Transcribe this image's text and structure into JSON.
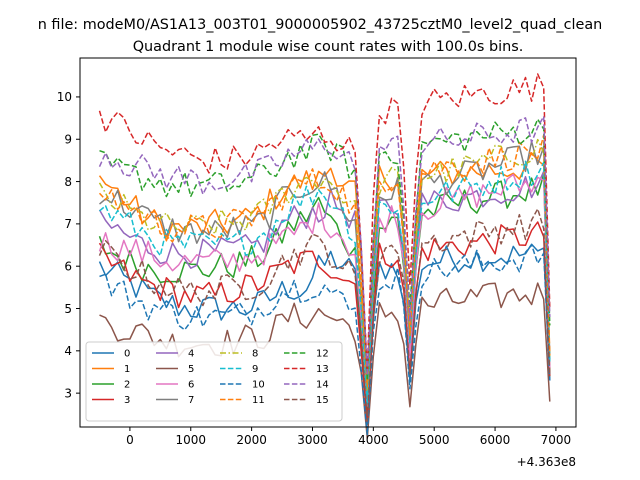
{
  "suptitle": "n file: modeM0/AS1A13_003T01_9000005902_43725cztM0_level2_quad_clean",
  "chart_data": {
    "type": "line",
    "title": "Quadrant 1 module wise count rates with 100.0s bins.",
    "xlabel": "",
    "ylabel": "",
    "x_offset_label": "+4.363e8",
    "xlim": [
      -820,
      7330
    ],
    "ylim": [
      2.2,
      10.92
    ],
    "xticks": [
      0,
      1000,
      2000,
      3000,
      4000,
      5000,
      6000,
      7000
    ],
    "xtick_labels": [
      "0",
      "1000",
      "2000",
      "3000",
      "4000",
      "5000",
      "6000",
      "7000"
    ],
    "yticks": [
      3,
      4,
      5,
      6,
      7,
      8,
      9,
      10
    ],
    "ytick_labels": [
      "3",
      "4",
      "5",
      "6",
      "7",
      "8",
      "9",
      "10"
    ],
    "grid": false,
    "legend_position": "lower-left",
    "legend_columns": 4,
    "x_start": -500,
    "x_step": 100,
    "num_points": 75,
    "dips": [
      {
        "center": 3900,
        "drop": 0.62
      },
      {
        "center": 4600,
        "drop": 0.45
      }
    ],
    "series": [
      {
        "name": "0",
        "color": "#1f77b4",
        "dash": "solid",
        "base": [
          6.0,
          5.8,
          5.6,
          5.4,
          5.2,
          5.1,
          5.0,
          5.0,
          5.0,
          5.0,
          5.0,
          5.1,
          5.3,
          5.5,
          5.4,
          5.9,
          6.2,
          6.0,
          5.5
        ],
        "rise": [
          5.9,
          6.2,
          6.3
        ],
        "last": 3.3
      },
      {
        "name": "1",
        "color": "#ff7f0e",
        "dash": "solid",
        "base": [
          8.1,
          7.8,
          7.5,
          7.2,
          7.0,
          6.9,
          6.9,
          6.9,
          7.0,
          7.0,
          7.1,
          7.3,
          7.6,
          7.9,
          8.0,
          8.0,
          8.4,
          7.9,
          7.7
        ],
        "rise": [
          8.1,
          8.2,
          8.4
        ],
        "last": 3.6
      },
      {
        "name": "2",
        "color": "#2ca02c",
        "dash": "solid",
        "base": [
          6.5,
          6.3,
          6.1,
          6.0,
          5.9,
          5.9,
          5.9,
          5.9,
          6.0,
          6.0,
          6.1,
          6.2,
          6.5,
          6.9,
          7.1,
          7.5,
          7.0,
          6.6,
          6.0
        ],
        "rise": [
          6.8,
          7.5,
          7.9
        ],
        "last": 3.4
      },
      {
        "name": "3",
        "color": "#d62728",
        "dash": "solid",
        "base": [
          6.2,
          6.0,
          5.8,
          5.6,
          5.5,
          5.4,
          5.3,
          5.3,
          5.3,
          5.4,
          5.5,
          5.6,
          5.8,
          6.0,
          6.1,
          6.2,
          6.0,
          5.7,
          5.5
        ],
        "rise": [
          6.2,
          6.5,
          6.8
        ],
        "last": 3.4
      },
      {
        "name": "4",
        "color": "#9467bd",
        "dash": "solid",
        "base": [
          7.0,
          6.9,
          6.7,
          6.5,
          6.4,
          6.3,
          6.3,
          6.3,
          6.3,
          6.4,
          6.4,
          6.5,
          6.8,
          7.1,
          7.2,
          7.3,
          7.5,
          7.3,
          6.8
        ],
        "rise": [
          7.3,
          7.6,
          8.0
        ],
        "last": 3.8
      },
      {
        "name": "5",
        "color": "#8c564b",
        "dash": "solid",
        "base": [
          4.7,
          4.6,
          4.5,
          4.4,
          4.3,
          4.2,
          4.2,
          4.2,
          4.2,
          4.2,
          4.3,
          4.3,
          4.5,
          4.8,
          4.8,
          4.9,
          4.8,
          4.6,
          4.5
        ],
        "rise": [
          4.8,
          5.2,
          5.4
        ],
        "last": 2.8
      },
      {
        "name": "6",
        "color": "#e377c2",
        "dash": "solid",
        "base": [
          6.6,
          6.5,
          6.4,
          6.3,
          6.2,
          6.1,
          6.1,
          6.1,
          6.1,
          6.1,
          6.2,
          6.3,
          6.5,
          6.7,
          6.9,
          7.2,
          7.0,
          6.6,
          6.2
        ],
        "rise": [
          7.0,
          7.6,
          8.1
        ],
        "last": 3.6
      },
      {
        "name": "7",
        "color": "#7f7f7f",
        "dash": "solid",
        "base": [
          7.8,
          7.6,
          7.4,
          7.2,
          7.0,
          6.9,
          6.8,
          6.8,
          6.8,
          6.9,
          6.9,
          7.0,
          7.3,
          7.7,
          7.9,
          8.0,
          7.9,
          7.3,
          6.8
        ],
        "rise": [
          7.6,
          8.1,
          8.8
        ],
        "last": 3.8
      },
      {
        "name": "8",
        "color": "#bcbd22",
        "dash": "dashdot",
        "base": [
          7.7,
          7.5,
          7.3,
          7.1,
          7.0,
          6.9,
          6.9,
          6.9,
          7.0,
          7.0,
          7.1,
          7.2,
          7.5,
          7.8,
          8.0,
          8.1,
          8.0,
          7.6,
          7.0
        ],
        "rise": [
          7.9,
          8.3,
          8.9
        ],
        "last": 3.8
      },
      {
        "name": "9",
        "color": "#17becf",
        "dash": "dashed",
        "base": [
          7.4,
          7.2,
          7.0,
          6.8,
          6.6,
          6.5,
          6.5,
          6.5,
          6.5,
          6.5,
          6.6,
          6.7,
          7.0,
          7.4,
          7.6,
          7.8,
          7.6,
          7.1,
          6.5
        ],
        "rise": [
          7.3,
          7.8,
          8.4
        ],
        "last": 3.7
      },
      {
        "name": "10",
        "color": "#1f77b4",
        "dash": "dashed",
        "base": [
          5.7,
          5.5,
          5.3,
          5.1,
          5.0,
          4.9,
          4.8,
          4.8,
          4.8,
          4.8,
          4.9,
          5.0,
          5.3,
          5.5,
          5.5,
          5.6,
          5.4,
          5.0,
          4.8
        ],
        "rise": [
          5.6,
          6.0,
          6.3
        ],
        "last": 3.3
      },
      {
        "name": "11",
        "color": "#ff7f0e",
        "dash": "dashed",
        "base": [
          7.8,
          7.6,
          7.4,
          7.2,
          7.0,
          6.9,
          6.9,
          6.9,
          6.9,
          7.0,
          7.1,
          7.2,
          7.5,
          7.8,
          8.0,
          8.0,
          8.0,
          7.6,
          7.1
        ],
        "rise": [
          8.0,
          8.4,
          8.8
        ],
        "last": 3.9
      },
      {
        "name": "12",
        "color": "#2ca02c",
        "dash": "dashed",
        "base": [
          8.4,
          8.3,
          8.2,
          8.1,
          8.0,
          7.9,
          7.9,
          7.9,
          7.9,
          7.9,
          8.0,
          8.1,
          8.3,
          8.6,
          8.7,
          8.8,
          8.8,
          8.4,
          8.2
        ],
        "rise": [
          8.6,
          9.0,
          9.3
        ],
        "last": 4.6
      },
      {
        "name": "13",
        "color": "#d62728",
        "dash": "dashed",
        "base": [
          9.6,
          9.4,
          9.2,
          9.0,
          8.8,
          8.7,
          8.6,
          8.5,
          8.5,
          8.5,
          8.6,
          8.7,
          8.9,
          9.0,
          9.0,
          9.1,
          9.1,
          8.8,
          8.6
        ],
        "rise": [
          9.6,
          10.0,
          10.3
        ],
        "last": 5.0
      },
      {
        "name": "14",
        "color": "#9467bd",
        "dash": "dashed",
        "base": [
          8.7,
          8.6,
          8.4,
          8.3,
          8.2,
          8.1,
          8.1,
          8.0,
          8.0,
          8.1,
          8.1,
          8.2,
          8.4,
          8.6,
          8.7,
          8.8,
          8.9,
          8.6,
          8.3
        ],
        "rise": [
          8.7,
          9.0,
          9.3
        ],
        "last": 4.8
      },
      {
        "name": "15",
        "color": "#8c564b",
        "dash": "dashed",
        "base": [
          6.4,
          6.2,
          6.0,
          5.8,
          5.6,
          5.5,
          5.4,
          5.4,
          5.4,
          5.5,
          5.5,
          5.6,
          5.9,
          6.2,
          6.4,
          6.5,
          6.3,
          5.9,
          5.5
        ],
        "rise": [
          6.3,
          6.7,
          7.1
        ],
        "last": 3.4
      }
    ]
  }
}
